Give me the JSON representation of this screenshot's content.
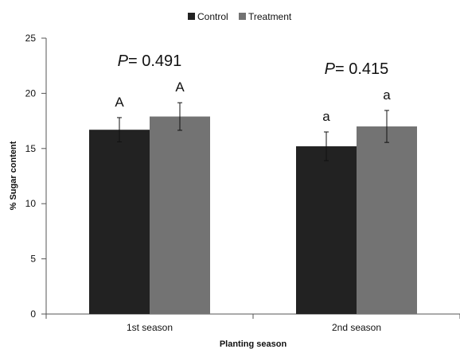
{
  "chart_data": {
    "type": "bar",
    "categories": [
      "1st season",
      "2nd season"
    ],
    "series": [
      {
        "name": "Control",
        "color": "#222222",
        "values": [
          16.7,
          15.2
        ],
        "errors": [
          1.1,
          1.3
        ]
      },
      {
        "name": "Treatment",
        "color": "#737373",
        "values": [
          17.9,
          17.0
        ],
        "errors": [
          1.25,
          1.45
        ]
      }
    ],
    "xlabel": "Planting season",
    "ylabel": "% Sugar content",
    "ylim": [
      0,
      25
    ],
    "yticks": [
      "0",
      "5",
      "10",
      "15",
      "20",
      "25"
    ],
    "ytick_values": [
      0,
      5,
      10,
      15,
      20,
      25
    ],
    "grid": false,
    "legend_position": "top-center",
    "annotations": {
      "p_values": [
        {
          "category": "1st season",
          "prefix": "P",
          "text": "= 0.491"
        },
        {
          "category": "2nd season",
          "prefix": "P",
          "text": "= 0.415"
        }
      ],
      "letters": [
        [
          "A",
          "A"
        ],
        [
          "a",
          "a"
        ]
      ]
    }
  }
}
